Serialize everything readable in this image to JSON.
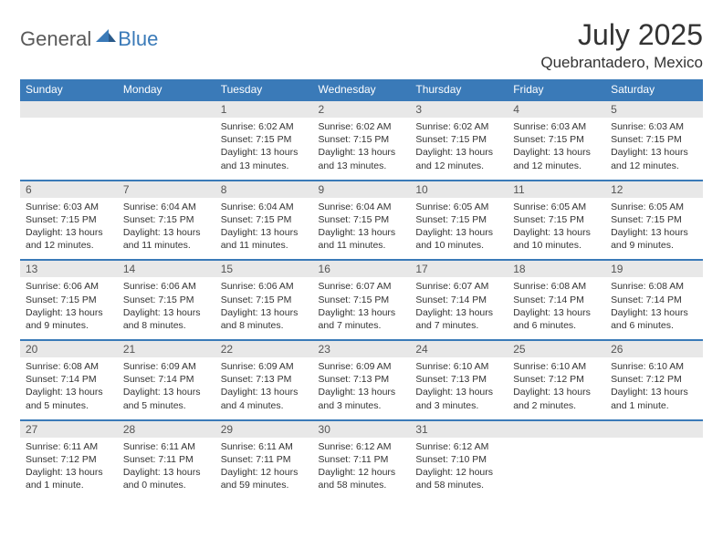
{
  "logo": {
    "text1": "General",
    "text2": "Blue"
  },
  "title": "July 2025",
  "location": "Quebrantadero, Mexico",
  "colors": {
    "header_bg": "#3a7ab8",
    "header_text": "#ffffff",
    "daynum_bg": "#e8e8e8",
    "daynum_text": "#555555",
    "content_text": "#333333",
    "logo_gray": "#5a5a5a",
    "logo_blue": "#3a7ab8",
    "divider": "#3a7ab8"
  },
  "dayNames": [
    "Sunday",
    "Monday",
    "Tuesday",
    "Wednesday",
    "Thursday",
    "Friday",
    "Saturday"
  ],
  "weeks": [
    [
      null,
      null,
      {
        "n": "1",
        "sr": "6:02 AM",
        "ss": "7:15 PM",
        "dl": "13 hours and 13 minutes."
      },
      {
        "n": "2",
        "sr": "6:02 AM",
        "ss": "7:15 PM",
        "dl": "13 hours and 13 minutes."
      },
      {
        "n": "3",
        "sr": "6:02 AM",
        "ss": "7:15 PM",
        "dl": "13 hours and 12 minutes."
      },
      {
        "n": "4",
        "sr": "6:03 AM",
        "ss": "7:15 PM",
        "dl": "13 hours and 12 minutes."
      },
      {
        "n": "5",
        "sr": "6:03 AM",
        "ss": "7:15 PM",
        "dl": "13 hours and 12 minutes."
      }
    ],
    [
      {
        "n": "6",
        "sr": "6:03 AM",
        "ss": "7:15 PM",
        "dl": "13 hours and 12 minutes."
      },
      {
        "n": "7",
        "sr": "6:04 AM",
        "ss": "7:15 PM",
        "dl": "13 hours and 11 minutes."
      },
      {
        "n": "8",
        "sr": "6:04 AM",
        "ss": "7:15 PM",
        "dl": "13 hours and 11 minutes."
      },
      {
        "n": "9",
        "sr": "6:04 AM",
        "ss": "7:15 PM",
        "dl": "13 hours and 11 minutes."
      },
      {
        "n": "10",
        "sr": "6:05 AM",
        "ss": "7:15 PM",
        "dl": "13 hours and 10 minutes."
      },
      {
        "n": "11",
        "sr": "6:05 AM",
        "ss": "7:15 PM",
        "dl": "13 hours and 10 minutes."
      },
      {
        "n": "12",
        "sr": "6:05 AM",
        "ss": "7:15 PM",
        "dl": "13 hours and 9 minutes."
      }
    ],
    [
      {
        "n": "13",
        "sr": "6:06 AM",
        "ss": "7:15 PM",
        "dl": "13 hours and 9 minutes."
      },
      {
        "n": "14",
        "sr": "6:06 AM",
        "ss": "7:15 PM",
        "dl": "13 hours and 8 minutes."
      },
      {
        "n": "15",
        "sr": "6:06 AM",
        "ss": "7:15 PM",
        "dl": "13 hours and 8 minutes."
      },
      {
        "n": "16",
        "sr": "6:07 AM",
        "ss": "7:15 PM",
        "dl": "13 hours and 7 minutes."
      },
      {
        "n": "17",
        "sr": "6:07 AM",
        "ss": "7:14 PM",
        "dl": "13 hours and 7 minutes."
      },
      {
        "n": "18",
        "sr": "6:08 AM",
        "ss": "7:14 PM",
        "dl": "13 hours and 6 minutes."
      },
      {
        "n": "19",
        "sr": "6:08 AM",
        "ss": "7:14 PM",
        "dl": "13 hours and 6 minutes."
      }
    ],
    [
      {
        "n": "20",
        "sr": "6:08 AM",
        "ss": "7:14 PM",
        "dl": "13 hours and 5 minutes."
      },
      {
        "n": "21",
        "sr": "6:09 AM",
        "ss": "7:14 PM",
        "dl": "13 hours and 5 minutes."
      },
      {
        "n": "22",
        "sr": "6:09 AM",
        "ss": "7:13 PM",
        "dl": "13 hours and 4 minutes."
      },
      {
        "n": "23",
        "sr": "6:09 AM",
        "ss": "7:13 PM",
        "dl": "13 hours and 3 minutes."
      },
      {
        "n": "24",
        "sr": "6:10 AM",
        "ss": "7:13 PM",
        "dl": "13 hours and 3 minutes."
      },
      {
        "n": "25",
        "sr": "6:10 AM",
        "ss": "7:12 PM",
        "dl": "13 hours and 2 minutes."
      },
      {
        "n": "26",
        "sr": "6:10 AM",
        "ss": "7:12 PM",
        "dl": "13 hours and 1 minute."
      }
    ],
    [
      {
        "n": "27",
        "sr": "6:11 AM",
        "ss": "7:12 PM",
        "dl": "13 hours and 1 minute."
      },
      {
        "n": "28",
        "sr": "6:11 AM",
        "ss": "7:11 PM",
        "dl": "13 hours and 0 minutes."
      },
      {
        "n": "29",
        "sr": "6:11 AM",
        "ss": "7:11 PM",
        "dl": "12 hours and 59 minutes."
      },
      {
        "n": "30",
        "sr": "6:12 AM",
        "ss": "7:11 PM",
        "dl": "12 hours and 58 minutes."
      },
      {
        "n": "31",
        "sr": "6:12 AM",
        "ss": "7:10 PM",
        "dl": "12 hours and 58 minutes."
      },
      null,
      null
    ]
  ],
  "labels": {
    "sunrise": "Sunrise:",
    "sunset": "Sunset:",
    "daylight": "Daylight:"
  }
}
